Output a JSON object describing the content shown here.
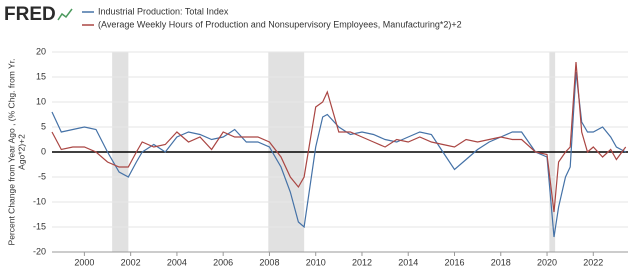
{
  "chart_data": {
    "type": "line",
    "logo": "FRED",
    "y_label_lines": [
      "Percent Change from Year Ago , (% Chg. from Yr.",
      "Ago*2)+2"
    ],
    "x": [
      1998.6,
      1999.0,
      1999.5,
      2000.0,
      2000.5,
      2001.0,
      2001.5,
      2001.9,
      2002.25,
      2002.5,
      2003.0,
      2003.5,
      2004.0,
      2004.5,
      2005.0,
      2005.5,
      2006.0,
      2006.5,
      2007.0,
      2007.5,
      2008.0,
      2008.5,
      2008.9,
      2009.25,
      2009.5,
      2009.75,
      2010.0,
      2010.3,
      2010.5,
      2011.0,
      2011.5,
      2012.0,
      2012.5,
      2013.0,
      2013.5,
      2014.0,
      2014.5,
      2015.0,
      2015.5,
      2016.0,
      2016.5,
      2017.0,
      2017.5,
      2018.0,
      2018.5,
      2018.9,
      2019.5,
      2020.0,
      2020.3,
      2020.5,
      2020.8,
      2021.0,
      2021.25,
      2021.5,
      2021.75,
      2022.0,
      2022.4,
      2022.75,
      2023.0,
      2023.4
    ],
    "series": [
      {
        "name": "Industrial Production: Total Index",
        "color": "#4572a7",
        "values": [
          8,
          4,
          4.5,
          5,
          4.5,
          0,
          -4,
          -5,
          -2,
          0,
          1.5,
          0,
          3,
          4,
          3.5,
          2.5,
          3,
          4.5,
          2,
          2,
          1,
          -3,
          -8,
          -14,
          -15,
          -7,
          1,
          7,
          7.5,
          5,
          3.5,
          4,
          3.5,
          2.5,
          2,
          3,
          4,
          3.5,
          0,
          -3.5,
          -1.5,
          0.5,
          2,
          3,
          4,
          4,
          0,
          -1,
          -17,
          -11,
          -5,
          -3,
          16,
          6,
          4,
          4,
          5,
          3,
          1,
          0
        ]
      },
      {
        "name": "(Average Weekly Hours of Production and Nonsupervisory Employees, Manufacturing*2)+2",
        "color": "#aa4643",
        "values": [
          4,
          0.5,
          1,
          1,
          0,
          -2,
          -3,
          -3,
          0,
          2,
          1,
          1.5,
          4,
          2,
          3,
          0.5,
          4,
          3,
          3,
          3,
          2,
          -1,
          -5,
          -7,
          -5,
          2,
          9,
          10,
          12,
          4,
          4,
          3,
          2,
          1,
          2.5,
          2,
          3,
          2,
          1.5,
          1,
          2.5,
          2,
          2.5,
          3,
          2.5,
          2.5,
          0,
          -0.5,
          -12,
          -2,
          0,
          1,
          18,
          4,
          0,
          1,
          -1,
          0.5,
          -1.5,
          1
        ]
      }
    ],
    "recessions": [
      [
        2001.2,
        2001.9
      ],
      [
        2007.95,
        2009.5
      ],
      [
        2020.1,
        2020.35
      ]
    ],
    "recession_color": "#e1e1e1",
    "xlim": [
      1998.6,
      2023.5
    ],
    "xticks": [
      2000,
      2002,
      2004,
      2006,
      2008,
      2010,
      2012,
      2014,
      2016,
      2018,
      2020,
      2022
    ],
    "ylim": [
      -20,
      20
    ],
    "yticks": [
      -20,
      -15,
      -10,
      -5,
      0,
      5,
      10,
      15,
      20
    ],
    "grid": true
  }
}
